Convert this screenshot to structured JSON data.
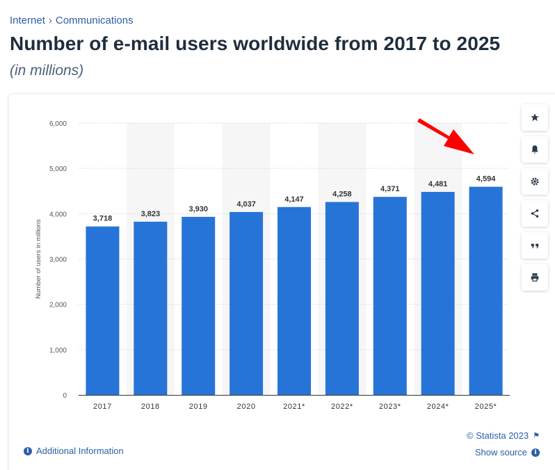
{
  "breadcrumb": {
    "item1": "Internet",
    "separator": "›",
    "item2": "Communications"
  },
  "title": "Number of e-mail users worldwide from 2017 to 2025",
  "subtitle": "(in millions)",
  "chart_data": {
    "type": "bar",
    "title": "Number of e-mail users worldwide from 2017 to 2025",
    "xlabel": "",
    "ylabel": "Number of users in millions",
    "ylim": [
      0,
      6000
    ],
    "yticks": [
      0,
      1000,
      2000,
      3000,
      4000,
      5000,
      6000
    ],
    "ytick_labels": [
      "0",
      "1,000",
      "2,000",
      "3,000",
      "4,000",
      "5,000",
      "6,000"
    ],
    "categories": [
      "2017",
      "2018",
      "2019",
      "2020",
      "2021*",
      "2022*",
      "2023*",
      "2024*",
      "2025*"
    ],
    "values": [
      3718,
      3823,
      3930,
      4037,
      4147,
      4258,
      4371,
      4481,
      4594
    ],
    "value_labels": [
      "3,718",
      "3,823",
      "3,930",
      "4,037",
      "4,147",
      "4,258",
      "4,371",
      "4,481",
      "4,594"
    ],
    "bar_color": "#2774d8",
    "annotation": "red arrow pointing at 2025* bar",
    "annotation_color": "#ff0000"
  },
  "tools": [
    "star-icon",
    "bell-icon",
    "gear-icon",
    "share-icon",
    "quote-icon",
    "print-icon"
  ],
  "footer": {
    "additional_info": "Additional Information",
    "copyright": "© Statista 2023",
    "show_source": "Show source"
  }
}
